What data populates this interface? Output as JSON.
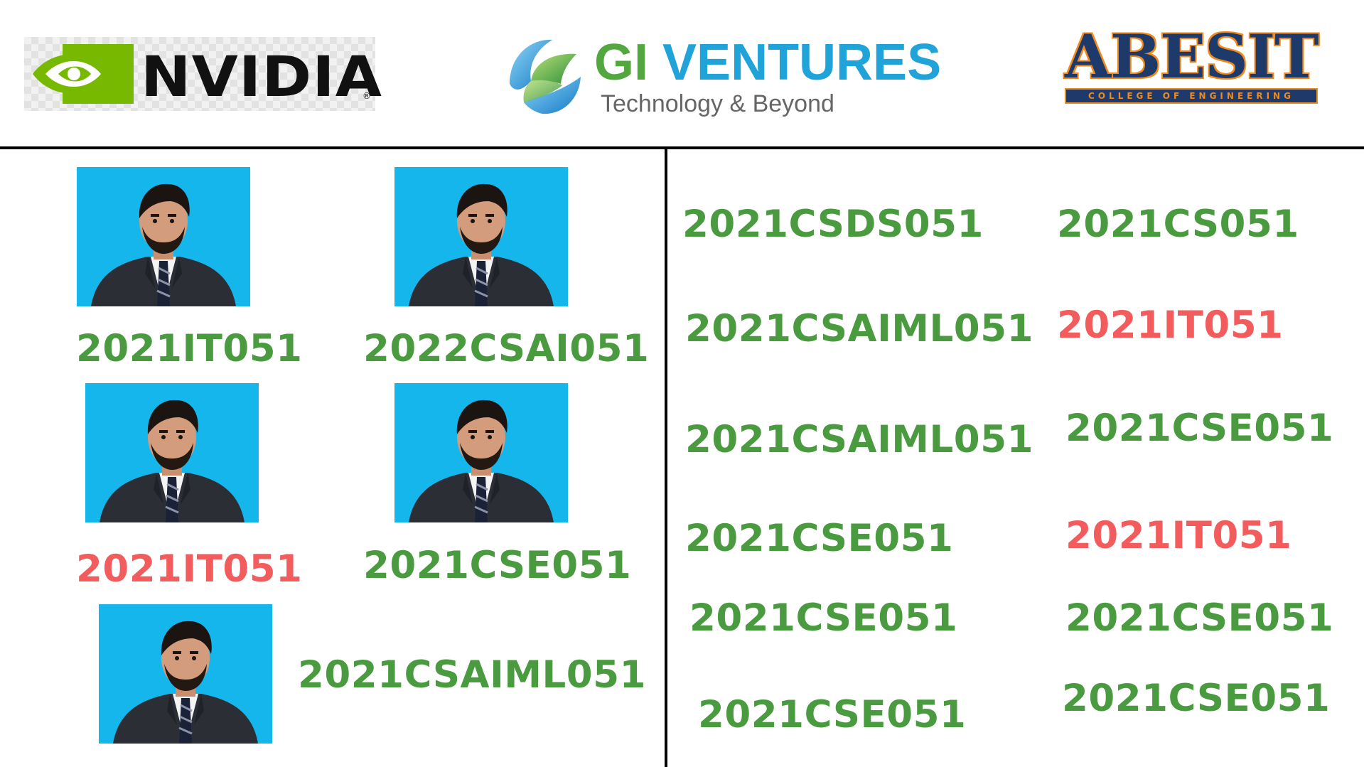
{
  "header": {
    "nvidia": {
      "word": "NVIDIA",
      "reg": "®",
      "icon": "nvidia-eye-icon",
      "green": "#76b900"
    },
    "gi": {
      "word_a": "GI",
      "word_b": "VENTURES",
      "tagline": "Technology & Beyond",
      "green": "#52a83e",
      "blue": "#1fa3d8"
    },
    "abesit": {
      "word": "ABESIT",
      "tagline": "COLLEGE OF ENGINEERING",
      "navy": "#1e3a6b",
      "orange": "#f08a1c"
    }
  },
  "colors": {
    "green_code": "#4a9a3f",
    "red_code": "#f25c5c",
    "photo_bg": "#15b6ec"
  },
  "left_panel": {
    "photo_icon": "person-portrait-icon",
    "codes": [
      {
        "text": "2021IT051",
        "status": "green"
      },
      {
        "text": "2022CSAI051",
        "status": "green"
      },
      {
        "text": "2021IT051",
        "status": "red"
      },
      {
        "text": "2021CSE051",
        "status": "green"
      },
      {
        "text": "2021CSAIML051",
        "status": "green"
      }
    ]
  },
  "right_panel": {
    "codes": [
      {
        "text": "2021CSDS051",
        "status": "green"
      },
      {
        "text": "2021CS051",
        "status": "green"
      },
      {
        "text": "2021CSAIML051",
        "status": "green"
      },
      {
        "text": "2021IT051",
        "status": "red"
      },
      {
        "text": "2021CSAIML051",
        "status": "green"
      },
      {
        "text": "2021CSE051",
        "status": "green"
      },
      {
        "text": "2021CSE051",
        "status": "green"
      },
      {
        "text": "2021IT051",
        "status": "red"
      },
      {
        "text": "2021CSE051",
        "status": "green"
      },
      {
        "text": "2021CSE051",
        "status": "green"
      },
      {
        "text": "2021CSE051",
        "status": "green"
      },
      {
        "text": "2021CSE051",
        "status": "green"
      }
    ]
  }
}
